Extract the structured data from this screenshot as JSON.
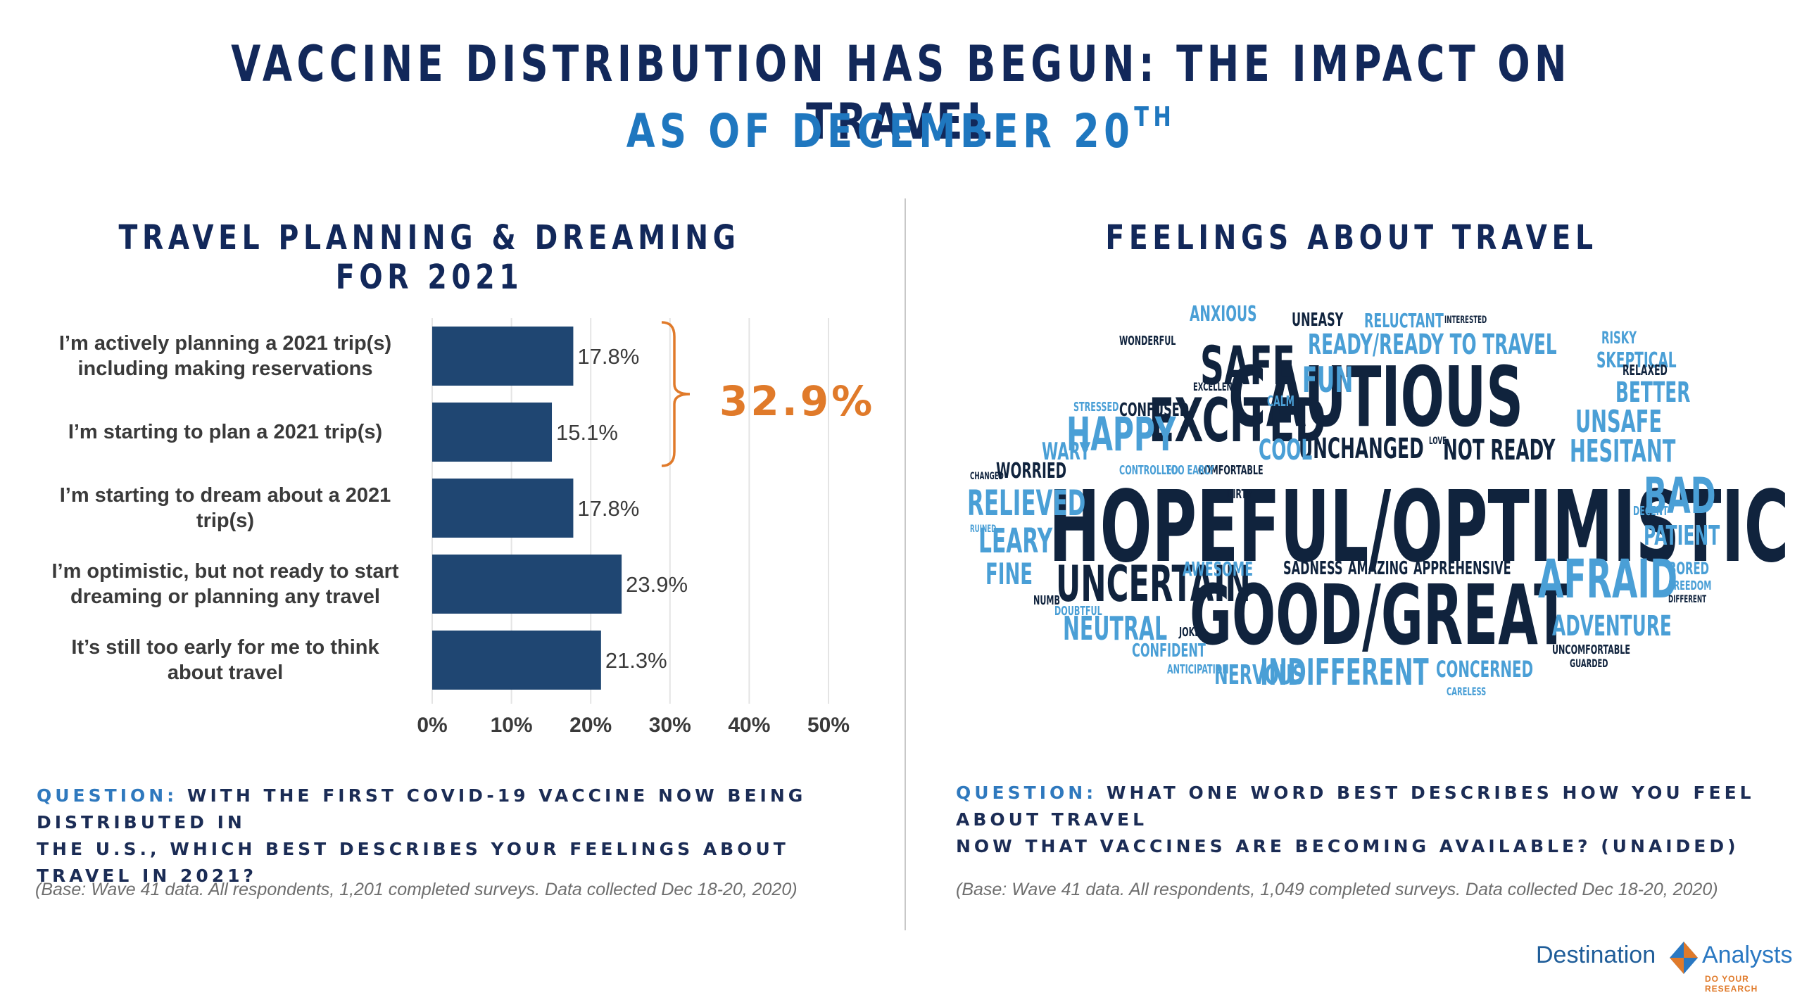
{
  "header": {
    "title": "VACCINE DISTRIBUTION HAS BEGUN: THE IMPACT ON TRAVEL",
    "subtitle_main": "AS OF DECEMBER 20",
    "subtitle_sup": "TH"
  },
  "left": {
    "section_title": "TRAVEL PLANNING & DREAMING FOR 2021",
    "bracket_total": "32.9%",
    "question_label": "QUESTION:",
    "question_line1": "WITH THE FIRST COVID-19 VACCINE NOW BEING DISTRIBUTED IN",
    "question_line2": "THE U.S., WHICH BEST DESCRIBES YOUR FEELINGS ABOUT TRAVEL IN 2021?",
    "base": "(Base: Wave 41 data. All respondents, 1,201 completed surveys. Data collected Dec 18-20, 2020)"
  },
  "right": {
    "section_title": "FEELINGS ABOUT TRAVEL",
    "question_label": "QUESTION:",
    "question_line1": "WHAT ONE WORD BEST DESCRIBES HOW YOU FEEL ABOUT TRAVEL",
    "question_line2": "NOW THAT VACCINES ARE BECOMING AVAILABLE? (UNAIDED)",
    "base": "(Base: Wave 41 data. All respondents, 1,049 completed surveys. Data collected Dec 18-20, 2020)",
    "word_cloud": [
      {
        "text": "HOPEFUL/OPTIMISTIC",
        "color": "#10233d"
      },
      {
        "text": "CAUTIOUS",
        "color": "#10233d"
      },
      {
        "text": "GOOD/GREAT",
        "color": "#10233d"
      },
      {
        "text": "EXCITED",
        "color": "#10233d"
      },
      {
        "text": "SAFE",
        "color": "#10233d"
      },
      {
        "text": "UNCERTAIN",
        "color": "#10233d"
      },
      {
        "text": "AFRAID",
        "color": "#4a9fd6"
      },
      {
        "text": "HAPPY",
        "color": "#4a9fd6"
      },
      {
        "text": "BAD",
        "color": "#4a9fd6"
      },
      {
        "text": "RELIEVED",
        "color": "#4a9fd6"
      },
      {
        "text": "LEARY",
        "color": "#4a9fd6"
      },
      {
        "text": "NEUTRAL",
        "color": "#4a9fd6"
      },
      {
        "text": "INDIFFERENT",
        "color": "#4a9fd6"
      },
      {
        "text": "HESITANT",
        "color": "#4a9fd6"
      },
      {
        "text": "UNSAFE",
        "color": "#4a9fd6"
      },
      {
        "text": "READY/READY TO TRAVEL",
        "color": "#4a9fd6"
      },
      {
        "text": "FUN",
        "color": "#4a9fd6"
      },
      {
        "text": "UNCHANGED",
        "color": "#10233d"
      },
      {
        "text": "NOT READY",
        "color": "#10233d"
      },
      {
        "text": "ADVENTURE",
        "color": "#4a9fd6"
      },
      {
        "text": "NERVOUS",
        "color": "#4a9fd6"
      },
      {
        "text": "CONCERNED",
        "color": "#4a9fd6"
      },
      {
        "text": "PATIENT",
        "color": "#4a9fd6"
      },
      {
        "text": "BETTER",
        "color": "#4a9fd6"
      },
      {
        "text": "FINE",
        "color": "#4a9fd6"
      },
      {
        "text": "WARY",
        "color": "#4a9fd6"
      },
      {
        "text": "COOL",
        "color": "#4a9fd6"
      },
      {
        "text": "WORRIED",
        "color": "#10233d"
      },
      {
        "text": "CONFUSED",
        "color": "#10233d"
      },
      {
        "text": "ANXIOUS",
        "color": "#4a9fd6"
      },
      {
        "text": "UNEASY",
        "color": "#10233d"
      },
      {
        "text": "RELUCTANT",
        "color": "#4a9fd6"
      },
      {
        "text": "SKEPTICAL",
        "color": "#4a9fd6"
      },
      {
        "text": "RISKY",
        "color": "#4a9fd6"
      },
      {
        "text": "CONFIDENT",
        "color": "#4a9fd6"
      },
      {
        "text": "APPREHENSIVE",
        "color": "#10233d"
      },
      {
        "text": "AMAZING",
        "color": "#10233d"
      },
      {
        "text": "SADNESS",
        "color": "#10233d"
      },
      {
        "text": "AWESOME",
        "color": "#4a9fd6"
      },
      {
        "text": "BORED",
        "color": "#4a9fd6"
      },
      {
        "text": "RELAXED",
        "color": "#10233d"
      },
      {
        "text": "WONDERFUL",
        "color": "#10233d"
      },
      {
        "text": "DOUBTFUL",
        "color": "#4a9fd6"
      },
      {
        "text": "UNCOMFORTABLE",
        "color": "#10233d"
      },
      {
        "text": "CALM",
        "color": "#4a9fd6"
      },
      {
        "text": "ANTICIPATION",
        "color": "#4a9fd6"
      },
      {
        "text": "FREEDOM",
        "color": "#4a9fd6"
      },
      {
        "text": "DIRTY",
        "color": "#10233d"
      },
      {
        "text": "COMFORTABLE",
        "color": "#10233d"
      },
      {
        "text": "NUMB",
        "color": "#10233d"
      },
      {
        "text": "DECENT",
        "color": "#4a9fd6"
      },
      {
        "text": "TOO EARLY",
        "color": "#4a9fd6"
      },
      {
        "text": "CONTROLLED",
        "color": "#4a9fd6"
      },
      {
        "text": "STRESSED",
        "color": "#4a9fd6"
      },
      {
        "text": "EXCELLENT",
        "color": "#10233d"
      },
      {
        "text": "CARELESS",
        "color": "#4a9fd6"
      },
      {
        "text": "GUARDED",
        "color": "#10233d"
      },
      {
        "text": "JOKE",
        "color": "#10233d"
      },
      {
        "text": "INTERESTED",
        "color": "#10233d"
      },
      {
        "text": "RUINED",
        "color": "#4a9fd6"
      },
      {
        "text": "CHANGED",
        "color": "#10233d"
      },
      {
        "text": "DIFFERENT",
        "color": "#10233d"
      },
      {
        "text": "LOVE",
        "color": "#10233d"
      }
    ]
  },
  "chart_data": {
    "type": "bar",
    "orientation": "horizontal",
    "categories": [
      [
        "I’m actively planning a 2021 trip(s)",
        "including making reservations"
      ],
      [
        "I’m starting to plan a 2021 trip(s)"
      ],
      [
        "I’m starting to dream about a 2021",
        "trip(s)"
      ],
      [
        "I’m optimistic, but not ready to start",
        "dreaming or planning any travel"
      ],
      [
        "It’s still too early for me to think",
        "about travel"
      ]
    ],
    "values": [
      17.8,
      15.1,
      17.8,
      23.9,
      21.3
    ],
    "value_labels": [
      "17.8%",
      "15.1%",
      "17.8%",
      "23.9%",
      "21.3%"
    ],
    "xlim": [
      0,
      50
    ],
    "x_ticks": [
      0,
      10,
      20,
      30,
      40,
      50
    ],
    "x_tick_labels": [
      "0%",
      "10%",
      "20%",
      "30%",
      "40%",
      "50%"
    ],
    "bar_color": "#1f4672",
    "bracket": {
      "covers": [
        0,
        1
      ],
      "label": "32.9%",
      "color": "#e07a2a"
    },
    "grid": true
  },
  "logo": {
    "word1": "Destination",
    "word2": "Analysts",
    "tagline": "DO YOUR RESEARCH"
  }
}
